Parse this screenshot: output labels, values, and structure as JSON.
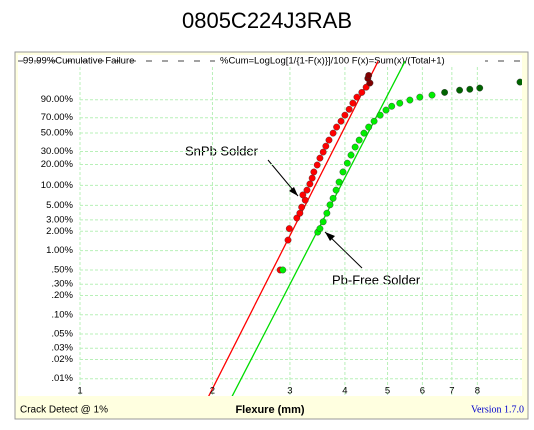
{
  "chart_data": {
    "type": "scatter",
    "title": "0805C224J3RAB",
    "formula": "%Cum=LogLog[1/{1-F(x)}]/100  F(x)=Sum(x)/(Total+1)",
    "xlabel": "Flexure (mm)",
    "footer_left": "Crack Detect @ 1%",
    "footer_right": "Version 1.7.0",
    "xscale": "log",
    "yscale": "weibull",
    "grid": true,
    "xlim": [
      1,
      10
    ],
    "ylim": [
      0.0062,
      99.999
    ],
    "xticks": [
      1,
      2,
      3,
      4,
      5,
      6,
      7,
      8
    ],
    "yticks": [
      {
        "value": 99.99,
        "label": "99.99%Cumulative Failure"
      },
      {
        "value": 90,
        "label": "90.00%"
      },
      {
        "value": 70,
        "label": "70.00%"
      },
      {
        "value": 50,
        "label": "50.00%"
      },
      {
        "value": 30,
        "label": "30.00%"
      },
      {
        "value": 20,
        "label": "20.00%"
      },
      {
        "value": 10,
        "label": "10.00%"
      },
      {
        "value": 5,
        "label": "5.00%"
      },
      {
        "value": 3,
        "label": "3.00%"
      },
      {
        "value": 2,
        "label": "2.00%"
      },
      {
        "value": 1,
        "label": "1.00%"
      },
      {
        "value": 0.5,
        "label": ".50%"
      },
      {
        "value": 0.3,
        "label": ".30%"
      },
      {
        "value": 0.2,
        "label": ".20%"
      },
      {
        "value": 0.1,
        "label": ".10%"
      },
      {
        "value": 0.05,
        "label": ".05%"
      },
      {
        "value": 0.03,
        "label": ".03%"
      },
      {
        "value": 0.02,
        "label": ".02%"
      },
      {
        "value": 0.01,
        "label": ".01%"
      }
    ],
    "series": [
      {
        "color": "#ff0000",
        "x": [
          2.85,
          2.97,
          2.99,
          3.11,
          3.16,
          3.19,
          3.25,
          3.21,
          3.28,
          3.33,
          3.37,
          3.4,
          3.46,
          3.51,
          3.57,
          3.62,
          3.68,
          3.76,
          3.83,
          3.92,
          4.0,
          4.09,
          4.17,
          4.26,
          4.37,
          4.47
        ],
        "values": [
          0.5,
          1.46,
          2.2,
          3.2,
          3.8,
          4.7,
          6.0,
          7.2,
          8.5,
          10.5,
          12.8,
          15.7,
          19.7,
          24.5,
          29.5,
          35.1,
          41.6,
          49.9,
          57.7,
          65.4,
          73.3,
          80.4,
          86.9,
          92.0,
          95.0,
          97.3
        ]
      },
      {
        "color": "#800000",
        "x": [
          4.56,
          4.51,
          4.53
        ],
        "values": [
          98.5,
          99.3,
          99.6
        ]
      },
      {
        "color": "#00ee00",
        "x": [
          2.89,
          3.47,
          3.51,
          3.57,
          3.64,
          3.7,
          3.76,
          3.82,
          3.88,
          3.96,
          4.05,
          4.13,
          4.22,
          4.31,
          4.42,
          4.53,
          4.66,
          4.81,
          4.96,
          5.11,
          5.33,
          5.62,
          5.92,
          6.31
        ],
        "values": [
          0.5,
          1.94,
          2.2,
          2.8,
          3.8,
          5.1,
          6.4,
          8.5,
          11.2,
          15.7,
          20.9,
          26.9,
          34.2,
          41.6,
          49.9,
          57.7,
          65.4,
          73.3,
          79.5,
          83.8,
          86.9,
          89.7,
          92.0,
          93.4
        ]
      },
      {
        "color": "#006400",
        "x": [
          6.74,
          7.29,
          7.69,
          8.1,
          10.0
        ],
        "values": [
          95.0,
          96.1,
          96.5,
          97.0,
          98.7
        ]
      }
    ],
    "fit_lines": [
      {
        "color": "#ff0000",
        "x": [
          1.92,
          4.76
        ],
        "values": [
          0.004,
          99.99
        ]
      },
      {
        "color": "#00dd00",
        "x": [
          2.17,
          5.48
        ],
        "values": [
          0.004,
          99.99
        ]
      }
    ],
    "annotations": [
      "SnPb Solder",
      "Pb-Free Solder"
    ]
  }
}
